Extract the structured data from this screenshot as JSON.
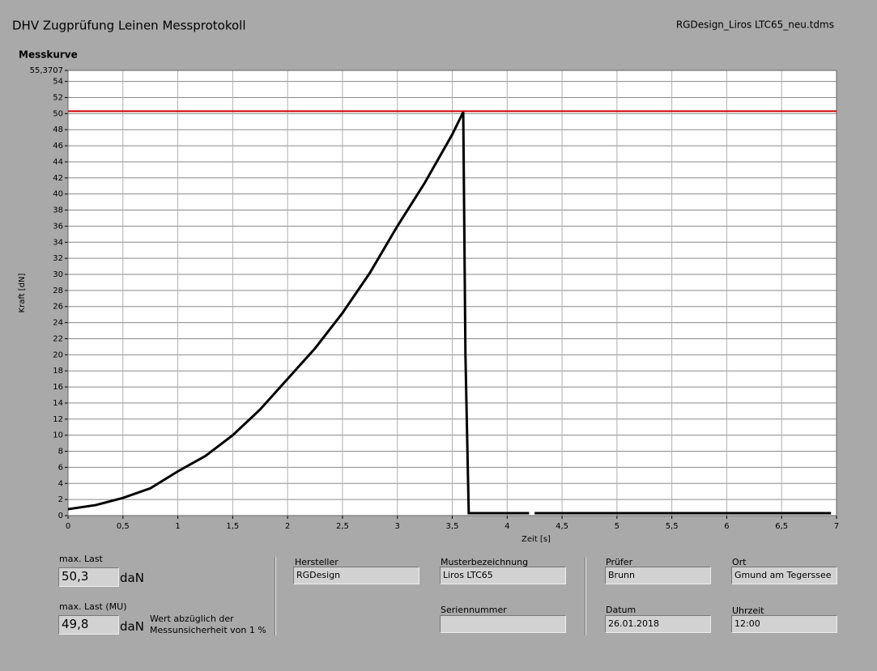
{
  "header": {
    "title": "DHV Zugprüfung Leinen Messprotokoll",
    "file": "RGDesign_Liros LTC65_neu.tdms"
  },
  "chart_data": {
    "type": "line",
    "title": "Messkurve",
    "x_label": "Zeit [s]",
    "y_label": "Kraft [dN]",
    "xlim": [
      0,
      7
    ],
    "ylim": [
      0,
      55.3707
    ],
    "xticks": [
      0,
      {
        "value": 0.5,
        "label": "0,5"
      },
      1,
      {
        "value": 1.5,
        "label": "1,5"
      },
      2,
      {
        "value": 2.5,
        "label": "2,5"
      },
      3,
      {
        "value": 3.5,
        "label": "3,5"
      },
      4,
      {
        "value": 4.5,
        "label": "4,5"
      },
      5,
      {
        "value": 5.5,
        "label": "5,5"
      },
      6,
      {
        "value": 6.5,
        "label": "6,5"
      },
      7
    ],
    "yticks": [
      0,
      2,
      4,
      6,
      8,
      10,
      12,
      14,
      16,
      18,
      20,
      22,
      24,
      26,
      28,
      30,
      32,
      34,
      36,
      38,
      40,
      42,
      44,
      46,
      48,
      50,
      52,
      54,
      {
        "value": 55.3707,
        "label": "55,3707"
      }
    ],
    "grid": true,
    "series": [
      {
        "color": "#000000",
        "x": [
          0,
          0.25,
          0.5,
          0.75,
          1,
          1.25,
          1.5,
          1.75,
          2,
          2.25,
          2.5,
          2.75,
          3,
          3.25,
          3.5,
          3.6,
          3.62,
          3.65,
          3.7,
          4.2,
          4.22,
          4.25,
          6.95
        ],
        "values": [
          0.8,
          1.3,
          2.2,
          3.4,
          5.5,
          7.4,
          10.0,
          13.2,
          17.0,
          20.8,
          25.2,
          30.2,
          36.0,
          41.4,
          47.4,
          50.2,
          20,
          0.3,
          0.3,
          0.3,
          null,
          0.3,
          0.3
        ]
      },
      {
        "color": "#cc0000",
        "x": [
          0,
          7
        ],
        "values": [
          50.3,
          50.3
        ]
      }
    ]
  },
  "measurements": [
    {
      "label": "max. Last",
      "value": "50,3",
      "unit": "daN"
    },
    {
      "label": "max. Last (MU)",
      "value": "49,8",
      "unit": "daN",
      "note": [
        "Wert abzüglich der",
        "Messunsicherheit von 1 %"
      ]
    }
  ],
  "info": {
    "hersteller": {
      "label": "Hersteller",
      "value": "RGDesign"
    },
    "muster": {
      "label": "Musterbezeichnung",
      "value": "Liros LTC65"
    },
    "serie": {
      "label": "Seriennummer"
    },
    "pruefer": {
      "label": "Prüfer",
      "value": "Brunn"
    },
    "ort": {
      "label": "Ort",
      "value": "Gmund am Tegerssee"
    },
    "datum": {
      "label": "Datum",
      "value": "26.01.2018"
    },
    "uhrzeit": {
      "label": "Uhrzeit",
      "value": "12:00"
    }
  }
}
